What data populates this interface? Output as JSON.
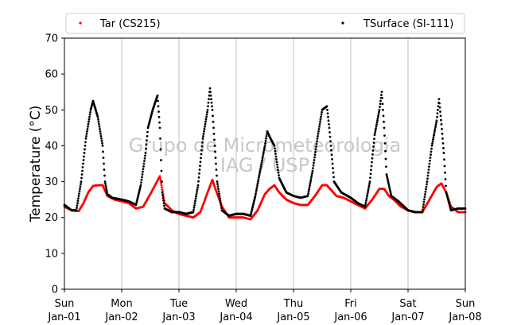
{
  "chart_data": {
    "type": "scatter",
    "ylabel": "Temperature (°C)",
    "ylim": [
      0,
      70
    ],
    "yticks": [
      "0",
      "10",
      "20",
      "30",
      "40",
      "50",
      "60",
      "70"
    ],
    "xlim": [
      "2017-01-01 00:00",
      "2017-01-08 00:00"
    ],
    "xticks": [
      {
        "day": "Sun",
        "date": "Jan-01"
      },
      {
        "day": "Mon",
        "date": "Jan-02"
      },
      {
        "day": "Tue",
        "date": "Jan-03"
      },
      {
        "day": "Wed",
        "date": "Jan-04"
      },
      {
        "day": "Thu",
        "date": "Jan-05"
      },
      {
        "day": "Fri",
        "date": "Jan-06"
      },
      {
        "day": "Sat",
        "date": "Jan-07"
      },
      {
        "day": "Sun",
        "date": "Jan-08"
      }
    ],
    "grid": "vertical",
    "legend_position": "top",
    "watermark": [
      "Grupo de Micrometeorologia",
      "IAG / USP"
    ],
    "series": [
      {
        "name": "Tar (CS215)",
        "color": "#ff0000",
        "points": [
          [
            "2017-01-01 00:00",
            23.0
          ],
          [
            "2017-01-01 03:00",
            22.0
          ],
          [
            "2017-01-01 06:00",
            21.8
          ],
          [
            "2017-01-01 08:00",
            24.0
          ],
          [
            "2017-01-01 10:00",
            27.0
          ],
          [
            "2017-01-01 12:00",
            28.8
          ],
          [
            "2017-01-01 14:00",
            29.0
          ],
          [
            "2017-01-01 16:00",
            29.0
          ],
          [
            "2017-01-01 18:00",
            26.0
          ],
          [
            "2017-01-01 21:00",
            25.0
          ],
          [
            "2017-01-02 00:00",
            24.5
          ],
          [
            "2017-01-02 03:00",
            24.0
          ],
          [
            "2017-01-02 06:00",
            22.5
          ],
          [
            "2017-01-02 09:00",
            23.0
          ],
          [
            "2017-01-02 12:00",
            26.5
          ],
          [
            "2017-01-02 14:00",
            29.0
          ],
          [
            "2017-01-02 16:00",
            31.5
          ],
          [
            "2017-01-02 18:00",
            24.0
          ],
          [
            "2017-01-02 21:00",
            22.0
          ],
          [
            "2017-01-03 00:00",
            21.0
          ],
          [
            "2017-01-03 03:00",
            20.5
          ],
          [
            "2017-01-03 06:00",
            20.0
          ],
          [
            "2017-01-03 09:00",
            21.5
          ],
          [
            "2017-01-03 12:00",
            27.0
          ],
          [
            "2017-01-03 14:00",
            30.5
          ],
          [
            "2017-01-03 15:00",
            28.5
          ],
          [
            "2017-01-03 18:00",
            23.0
          ],
          [
            "2017-01-03 21:00",
            20.0
          ],
          [
            "2017-01-04 00:00",
            20.0
          ],
          [
            "2017-01-04 03:00",
            20.0
          ],
          [
            "2017-01-04 06:00",
            19.5
          ],
          [
            "2017-01-04 09:00",
            22.0
          ],
          [
            "2017-01-04 12:00",
            26.5
          ],
          [
            "2017-01-04 14:00",
            28.0
          ],
          [
            "2017-01-04 16:00",
            29.0
          ],
          [
            "2017-01-04 18:00",
            27.0
          ],
          [
            "2017-01-04 21:00",
            25.0
          ],
          [
            "2017-01-05 00:00",
            24.0
          ],
          [
            "2017-01-05 03:00",
            23.5
          ],
          [
            "2017-01-05 06:00",
            23.5
          ],
          [
            "2017-01-05 09:00",
            26.0
          ],
          [
            "2017-01-05 12:00",
            29.0
          ],
          [
            "2017-01-05 14:00",
            29.0
          ],
          [
            "2017-01-05 16:00",
            27.5
          ],
          [
            "2017-01-05 18:00",
            26.0
          ],
          [
            "2017-01-05 21:00",
            25.5
          ],
          [
            "2017-01-06 00:00",
            24.5
          ],
          [
            "2017-01-06 03:00",
            23.5
          ],
          [
            "2017-01-06 06:00",
            22.5
          ],
          [
            "2017-01-06 09:00",
            25.0
          ],
          [
            "2017-01-06 12:00",
            28.0
          ],
          [
            "2017-01-06 14:00",
            28.0
          ],
          [
            "2017-01-06 16:00",
            26.0
          ],
          [
            "2017-01-06 18:00",
            25.0
          ],
          [
            "2017-01-06 21:00",
            23.0
          ],
          [
            "2017-01-07 00:00",
            22.0
          ],
          [
            "2017-01-07 03:00",
            21.5
          ],
          [
            "2017-01-07 06:00",
            21.5
          ],
          [
            "2017-01-07 09:00",
            25.0
          ],
          [
            "2017-01-07 12:00",
            28.5
          ],
          [
            "2017-01-07 14:00",
            29.5
          ],
          [
            "2017-01-07 16:00",
            27.0
          ],
          [
            "2017-01-07 18:00",
            23.0
          ],
          [
            "2017-01-07 21:00",
            21.5
          ],
          [
            "2017-01-08 00:00",
            21.5
          ]
        ]
      },
      {
        "name": "TSurface (SI-111)",
        "color": "#000000",
        "points": [
          [
            "2017-01-01 00:00",
            23.5
          ],
          [
            "2017-01-01 03:00",
            22.0
          ],
          [
            "2017-01-01 05:00",
            22.0
          ],
          [
            "2017-01-01 07:00",
            30.0
          ],
          [
            "2017-01-01 09:00",
            42.0
          ],
          [
            "2017-01-01 11:00",
            50.0
          ],
          [
            "2017-01-01 12:00",
            52.5
          ],
          [
            "2017-01-01 14:00",
            48.0
          ],
          [
            "2017-01-01 15:00",
            44.0
          ],
          [
            "2017-01-01 16:00",
            40.0
          ],
          [
            "2017-01-01 17:00",
            30.0
          ],
          [
            "2017-01-01 18:00",
            26.5
          ],
          [
            "2017-01-01 20:00",
            25.5
          ],
          [
            "2017-01-02 00:00",
            25.0
          ],
          [
            "2017-01-02 03:00",
            24.5
          ],
          [
            "2017-01-02 06:00",
            23.5
          ],
          [
            "2017-01-02 08:00",
            29.0
          ],
          [
            "2017-01-02 10:00",
            38.0
          ],
          [
            "2017-01-02 11:00",
            45.0
          ],
          [
            "2017-01-02 13:00",
            50.0
          ],
          [
            "2017-01-02 15:00",
            54.0
          ],
          [
            "2017-01-02 16:00",
            45.0
          ],
          [
            "2017-01-02 17:00",
            27.0
          ],
          [
            "2017-01-02 18:00",
            22.5
          ],
          [
            "2017-01-02 21:00",
            21.5
          ],
          [
            "2017-01-03 00:00",
            21.5
          ],
          [
            "2017-01-03 03:00",
            21.0
          ],
          [
            "2017-01-03 06:00",
            21.5
          ],
          [
            "2017-01-03 08:00",
            29.0
          ],
          [
            "2017-01-03 10:00",
            42.0
          ],
          [
            "2017-01-03 12:00",
            50.0
          ],
          [
            "2017-01-03 13:00",
            56.0
          ],
          [
            "2017-01-03 14:00",
            50.0
          ],
          [
            "2017-01-03 15:00",
            40.0
          ],
          [
            "2017-01-03 16:00",
            30.0
          ],
          [
            "2017-01-03 18:00",
            22.0
          ],
          [
            "2017-01-03 21:00",
            20.5
          ],
          [
            "2017-01-04 00:00",
            21.0
          ],
          [
            "2017-01-04 03:00",
            21.0
          ],
          [
            "2017-01-04 06:00",
            20.5
          ],
          [
            "2017-01-04 08:00",
            26.0
          ],
          [
            "2017-01-04 10:00",
            33.0
          ],
          [
            "2017-01-04 12:00",
            40.0
          ],
          [
            "2017-01-04 13:00",
            44.0
          ],
          [
            "2017-01-04 14:00",
            42.5
          ],
          [
            "2017-01-04 16:00",
            40.0
          ],
          [
            "2017-01-04 18:00",
            31.0
          ],
          [
            "2017-01-04 21:00",
            27.0
          ],
          [
            "2017-01-05 00:00",
            26.0
          ],
          [
            "2017-01-05 03:00",
            25.5
          ],
          [
            "2017-01-05 06:00",
            26.0
          ],
          [
            "2017-01-05 08:00",
            33.0
          ],
          [
            "2017-01-05 10:00",
            42.0
          ],
          [
            "2017-01-05 12:00",
            50.0
          ],
          [
            "2017-01-05 14:00",
            51.0
          ],
          [
            "2017-01-05 15:00",
            45.0
          ],
          [
            "2017-01-05 17:00",
            30.0
          ],
          [
            "2017-01-05 20:00",
            27.0
          ],
          [
            "2017-01-06 00:00",
            25.5
          ],
          [
            "2017-01-06 03:00",
            24.0
          ],
          [
            "2017-01-06 06:00",
            23.0
          ],
          [
            "2017-01-06 08:00",
            30.0
          ],
          [
            "2017-01-06 10:00",
            43.0
          ],
          [
            "2017-01-06 12:00",
            50.0
          ],
          [
            "2017-01-06 13:00",
            55.0
          ],
          [
            "2017-01-06 14:00",
            45.0
          ],
          [
            "2017-01-06 15:00",
            32.0
          ],
          [
            "2017-01-06 17:00",
            26.0
          ],
          [
            "2017-01-06 20:00",
            24.5
          ],
          [
            "2017-01-07 00:00",
            22.0
          ],
          [
            "2017-01-07 03:00",
            21.5
          ],
          [
            "2017-01-07 06:00",
            21.5
          ],
          [
            "2017-01-07 08:00",
            30.0
          ],
          [
            "2017-01-07 10:00",
            40.0
          ],
          [
            "2017-01-07 12:00",
            47.0
          ],
          [
            "2017-01-07 13:00",
            53.0
          ],
          [
            "2017-01-07 14:00",
            46.0
          ],
          [
            "2017-01-07 15:00",
            38.0
          ],
          [
            "2017-01-07 16:00",
            27.0
          ],
          [
            "2017-01-07 18:00",
            22.0
          ],
          [
            "2017-01-07 21:00",
            22.5
          ],
          [
            "2017-01-08 00:00",
            22.5
          ]
        ]
      }
    ]
  }
}
